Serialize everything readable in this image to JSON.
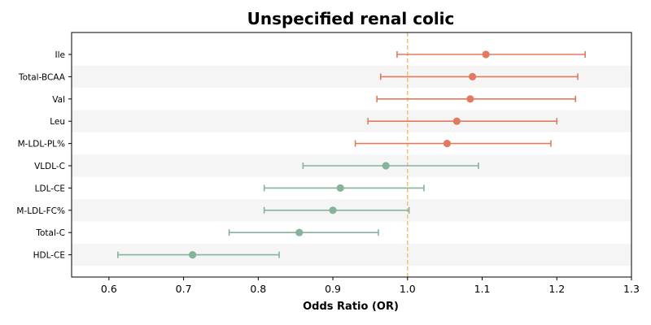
{
  "chart_data": {
    "type": "forest",
    "title": "Unspecified renal colic",
    "xlabel": "Odds Ratio (OR)",
    "ylabel": "",
    "xlim": [
      0.55,
      1.3
    ],
    "xticks": [
      "0.6",
      "0.7",
      "0.8",
      "0.9",
      "1.0",
      "1.1",
      "1.2",
      "1.3"
    ],
    "reference_line": 1.0,
    "reference_color": "#f0c674",
    "row_band_color": "#f5f5f5",
    "colors": {
      "risk": "#e07b5f",
      "protective": "#86b39a"
    },
    "rows": [
      {
        "label": "Ile",
        "or": 1.105,
        "lower": 0.986,
        "upper": 1.238,
        "group": "risk"
      },
      {
        "label": "Total-BCAA",
        "or": 1.087,
        "lower": 0.964,
        "upper": 1.228,
        "group": "risk"
      },
      {
        "label": "Val",
        "or": 1.084,
        "lower": 0.959,
        "upper": 1.225,
        "group": "risk"
      },
      {
        "label": "Leu",
        "or": 1.066,
        "lower": 0.947,
        "upper": 1.2,
        "group": "risk"
      },
      {
        "label": "M-LDL-PL%",
        "or": 1.053,
        "lower": 0.93,
        "upper": 1.192,
        "group": "risk"
      },
      {
        "label": "VLDL-C",
        "or": 0.971,
        "lower": 0.86,
        "upper": 1.095,
        "group": "protective"
      },
      {
        "label": "LDL-CE",
        "or": 0.91,
        "lower": 0.808,
        "upper": 1.022,
        "group": "protective"
      },
      {
        "label": "M-LDL-FC%",
        "or": 0.9,
        "lower": 0.808,
        "upper": 1.002,
        "group": "protective"
      },
      {
        "label": "Total-C",
        "or": 0.855,
        "lower": 0.761,
        "upper": 0.961,
        "group": "protective"
      },
      {
        "label": "HDL-CE",
        "or": 0.712,
        "lower": 0.612,
        "upper": 0.828,
        "group": "protective"
      }
    ]
  }
}
